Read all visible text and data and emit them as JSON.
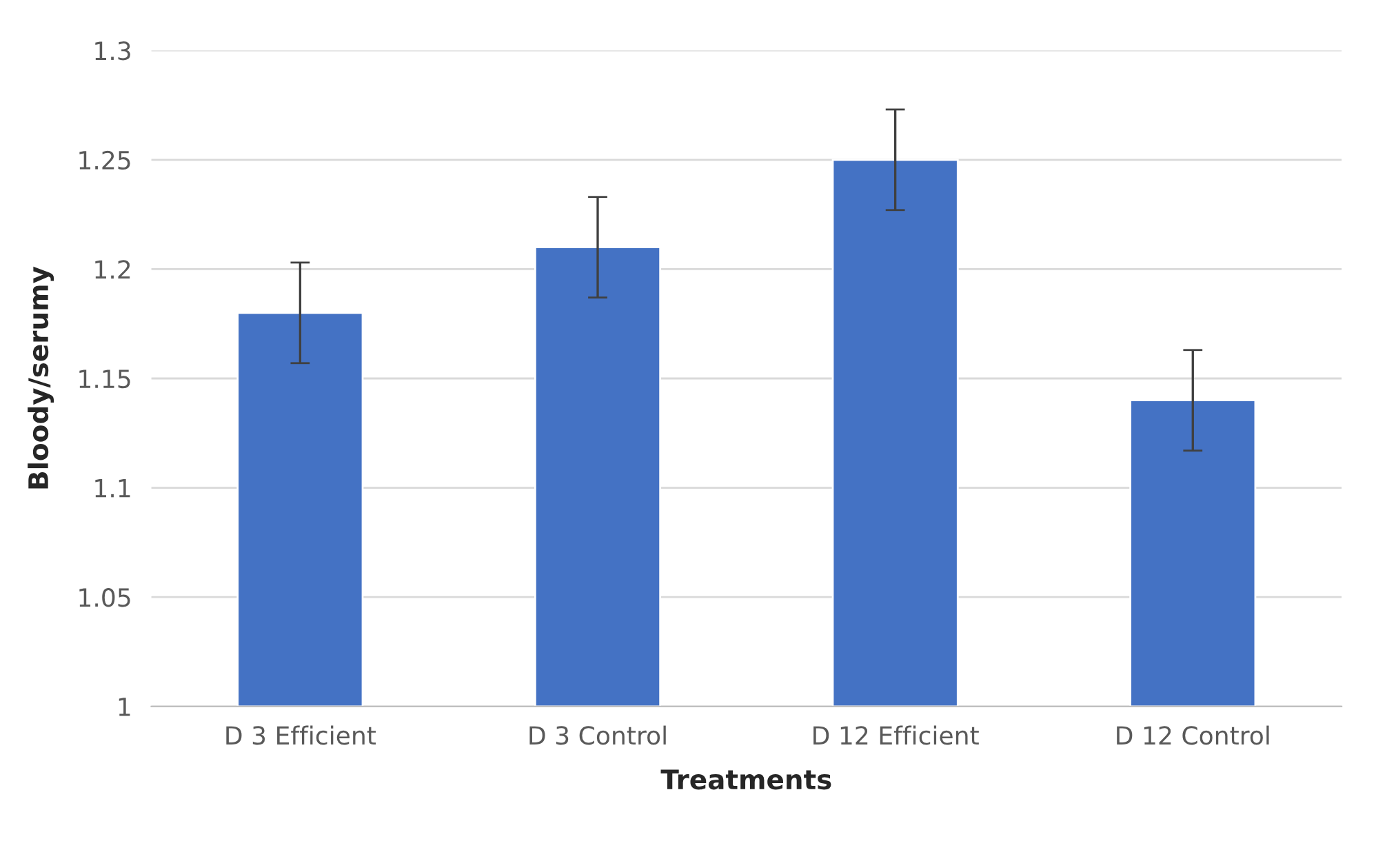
{
  "chart_data": {
    "type": "bar",
    "xlabel": "Treatments",
    "ylabel": "Bloody/serumy",
    "categories": [
      "D 3 Efficient",
      "D 3 Control",
      "D 12 Efficient",
      "D 12 Control"
    ],
    "values": [
      1.18,
      1.21,
      1.25,
      1.14
    ],
    "errors": [
      0.023,
      0.023,
      0.023,
      0.023
    ],
    "color": "#4472c4",
    "ylim": [
      1,
      1.3
    ],
    "yticks": [
      {
        "value": 1,
        "label": "1"
      },
      1.05,
      1.1,
      1.15,
      1.2,
      1.25,
      1.3
    ],
    "grid": "y",
    "legend": false
  }
}
